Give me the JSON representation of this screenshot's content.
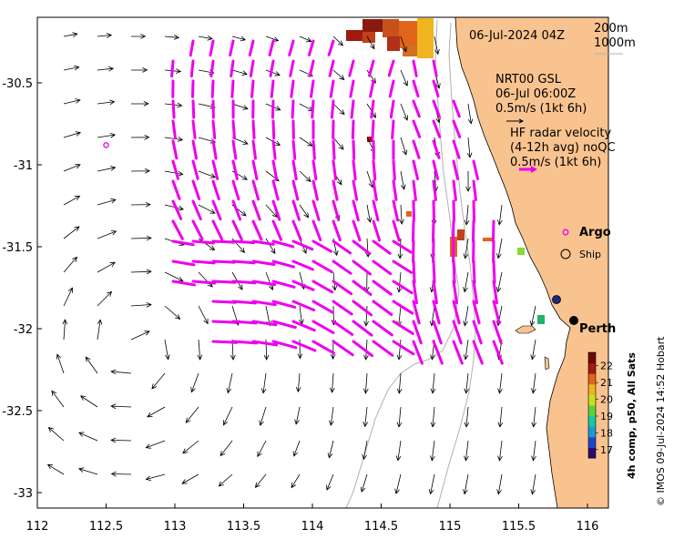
{
  "header": {
    "date_label": "06-Jul-2024 04Z",
    "depth_200": "200m",
    "depth_1000": "1000m"
  },
  "gsl_legend": {
    "title": "NRT00 GSL",
    "time": "06-Jul 06:00Z",
    "scale": "0.5m/s (1kt 6h)"
  },
  "hf_legend": {
    "title": "HF radar velocity",
    "avg": "(4-12h avg) noQC",
    "scale": "0.5m/s (1kt 6h)"
  },
  "symbol_legend": {
    "argo": "Argo",
    "ship": "Ship"
  },
  "place": {
    "city": "Perth"
  },
  "colorbar": {
    "title": "4h comp, p50, All Sats",
    "ticks": [
      "22",
      "21",
      "20",
      "19",
      "18",
      "17"
    ],
    "tick_values": [
      22,
      21,
      20,
      19,
      18,
      17
    ],
    "range": [
      16.5,
      22.8
    ],
    "colors": [
      "#2a0a6e",
      "#2046c8",
      "#1a9ad8",
      "#18c8a0",
      "#5ad23c",
      "#c8e01e",
      "#f0b41e",
      "#e0641a",
      "#a01a10",
      "#6a0a08"
    ]
  },
  "credit": "© IMOS 09-Jul-2024 14:52 Hobart",
  "axes": {
    "x_ticks": [
      "112",
      "112.5",
      "113",
      "113.5",
      "114",
      "114.5",
      "115",
      "115.5",
      "116"
    ],
    "x_values": [
      112,
      112.5,
      113,
      113.5,
      114,
      114.5,
      115,
      115.5,
      116
    ],
    "y_ticks": [
      "-30.5",
      "-31",
      "-31.5",
      "-32",
      "-32.5",
      "-33"
    ],
    "y_values": [
      -30.5,
      -31,
      -31.5,
      -32,
      -32.5,
      -33
    ],
    "xlim": [
      112,
      116.2
    ],
    "ylim": [
      -33.1,
      -30.05
    ]
  },
  "colors": {
    "land": "#f9c38f",
    "hf_arrow": "#ee00ee",
    "gsl_arrow": "#000000",
    "argo": "#ee00ee",
    "ship": "#000000"
  },
  "markers": {
    "argo": {
      "lon": 112.5,
      "lat": -30.88
    },
    "stations": [
      {
        "lon": 115.68,
        "lat": -31.82,
        "color": "#1a2a80"
      },
      {
        "lon": 115.85,
        "lat": -31.96,
        "color": "#000000"
      }
    ]
  }
}
